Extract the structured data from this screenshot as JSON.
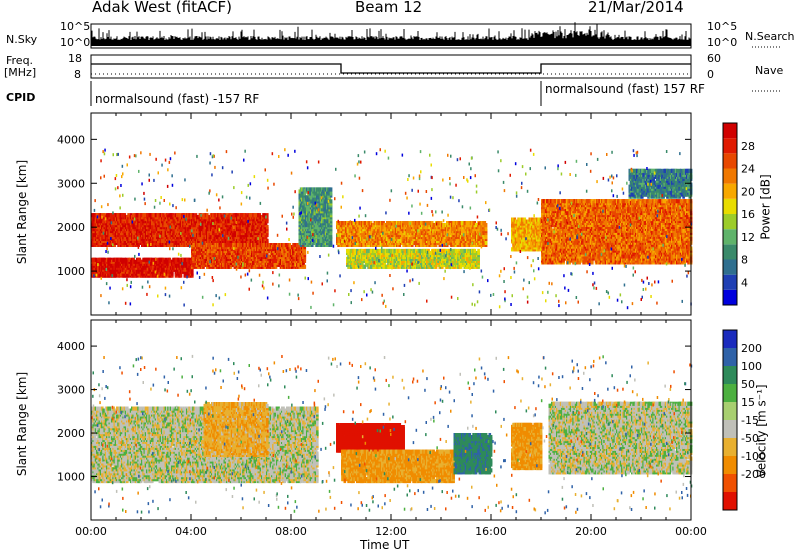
{
  "header": {
    "radar": "Adak West (fitACF)",
    "beam": "Beam 12",
    "date": "21/Mar/2014"
  },
  "noise_panel": {
    "left_label": "N.Sky",
    "right_label": "N.Search",
    "y_ticks_left": [
      "10^5",
      "10^0"
    ],
    "y_ticks_right": [
      "10^5",
      "10^0"
    ]
  },
  "freq_panel": {
    "left_label_1": "Freq.",
    "left_label_2": "[MHz]",
    "y_ticks_left": [
      "18",
      "8"
    ],
    "right_label": "Nave",
    "y_ticks_right": [
      "60",
      "0"
    ]
  },
  "cpid_panel": {
    "label": "CPID",
    "segments": [
      {
        "text": "normalsound (fast) -157 RF",
        "start_hour": 0
      },
      {
        "text": "normalsound (fast) 157 RF",
        "start_hour": 18
      }
    ]
  },
  "x_axis": {
    "label": "Time UT",
    "ticks": [
      "00:00",
      "04:00",
      "08:00",
      "12:00",
      "16:00",
      "20:00",
      "00:00"
    ]
  },
  "power_panel": {
    "ylabel": "Slant Range [km]",
    "y_ticks": [
      "1000",
      "2000",
      "3000",
      "4000"
    ],
    "colorbar_label": "Power [dB]",
    "colorbar_ticks": [
      "4",
      "8",
      "12",
      "16",
      "20",
      "24",
      "28"
    ],
    "colors": [
      "#0000dd",
      "#1f3fb4",
      "#2f6f8f",
      "#3a8a6a",
      "#5fb36a",
      "#9ccc2a",
      "#e8dc00",
      "#f8a800",
      "#f07800",
      "#e84800",
      "#e01a00",
      "#d00000"
    ]
  },
  "velocity_panel": {
    "ylabel": "Slant Range [km]",
    "y_ticks": [
      "1000",
      "2000",
      "3000",
      "4000"
    ],
    "colorbar_label": "Velocity [m s⁻¹]",
    "colorbar_ticks": [
      "200",
      "100",
      "50",
      "15",
      "-15",
      "-50",
      "-100",
      "-200"
    ],
    "colors": [
      "#1a2bbd",
      "#2f62a8",
      "#2e8a5a",
      "#4cb040",
      "#a8cf70",
      "#c0c0b8",
      "#e8b030",
      "#f08c00",
      "#f05000",
      "#e01000"
    ]
  },
  "chart_data": [
    {
      "type": "heatmap",
      "name": "power",
      "xlabel": "Time UT",
      "ylabel": "Slant Range [km]",
      "xlim": [
        0,
        24
      ],
      "ylim": [
        0,
        4600
      ],
      "zlabel": "Power [dB]",
      "zlim": [
        0,
        32
      ],
      "regions": [
        {
          "t0": 0.0,
          "t1": 7.0,
          "r0": 1600,
          "r1": 2300,
          "power": 28
        },
        {
          "t0": 0.0,
          "t1": 4.0,
          "r0": 900,
          "r1": 1300,
          "power": 30
        },
        {
          "t0": 4.0,
          "t1": 8.5,
          "r0": 1100,
          "r1": 1600,
          "power": 26
        },
        {
          "t0": 8.3,
          "t1": 9.6,
          "r0": 1600,
          "r1": 2900,
          "power": 10
        },
        {
          "t0": 9.8,
          "t1": 15.8,
          "r0": 1600,
          "r1": 2100,
          "power": 22
        },
        {
          "t0": 10.2,
          "t1": 15.5,
          "r0": 1100,
          "r1": 1500,
          "power": 16
        },
        {
          "t0": 16.8,
          "t1": 18.0,
          "r0": 1500,
          "r1": 2200,
          "power": 20
        },
        {
          "t0": 18.0,
          "t1": 24.0,
          "r0": 1200,
          "r1": 2600,
          "power": 24
        },
        {
          "t0": 21.5,
          "t1": 24.0,
          "r0": 2700,
          "r1": 3300,
          "power": 8
        }
      ]
    },
    {
      "type": "heatmap",
      "name": "velocity",
      "xlabel": "Time UT",
      "ylabel": "Slant Range [km]",
      "xlim": [
        0,
        24
      ],
      "ylim": [
        0,
        4600
      ],
      "zlabel": "Velocity [m s⁻¹]",
      "zlim": [
        -200,
        200
      ],
      "regions": [
        {
          "t0": 0.0,
          "t1": 9.0,
          "r0": 900,
          "r1": 2600,
          "velocity": 0
        },
        {
          "t0": 4.5,
          "t1": 7.0,
          "r0": 1500,
          "r1": 2700,
          "velocity": -40
        },
        {
          "t0": 9.8,
          "t1": 12.5,
          "r0": 1600,
          "r1": 2200,
          "velocity": -200
        },
        {
          "t0": 10.0,
          "t1": 14.5,
          "r0": 900,
          "r1": 1600,
          "velocity": -60
        },
        {
          "t0": 14.5,
          "t1": 16.0,
          "r0": 1100,
          "r1": 2000,
          "velocity": 60
        },
        {
          "t0": 16.8,
          "t1": 18.0,
          "r0": 1200,
          "r1": 2200,
          "velocity": -60
        },
        {
          "t0": 18.3,
          "t1": 24.0,
          "r0": 1100,
          "r1": 2700,
          "velocity": 0
        }
      ]
    }
  ]
}
